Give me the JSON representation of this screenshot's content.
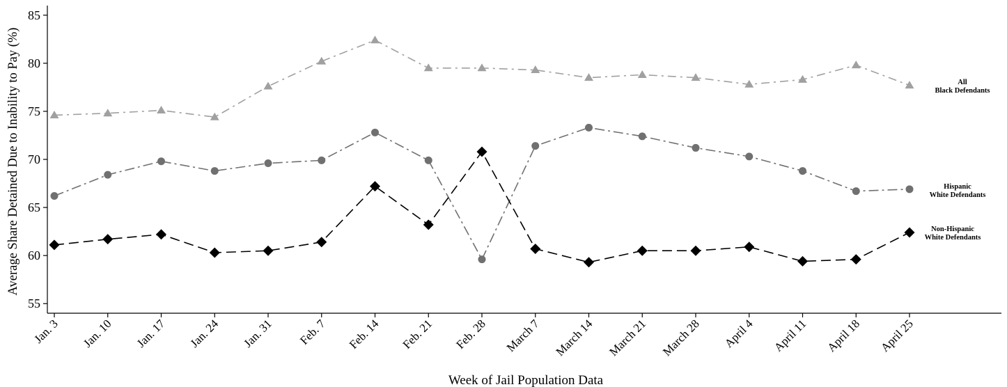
{
  "chart_data": {
    "type": "line",
    "title": "",
    "xlabel": "Week of Jail Population Data",
    "ylabel": "Average Share Detained Due to Inability to Pay (%)",
    "ylim": [
      54,
      86
    ],
    "yticks": [
      55,
      60,
      65,
      70,
      75,
      80,
      85
    ],
    "grid": false,
    "categories": [
      "Jan. 3",
      "Jan. 10",
      "Jan. 17",
      "Jan. 24",
      "Jan. 31",
      "Feb. 7",
      "Feb. 14",
      "Feb. 21",
      "Feb. 28",
      "March 7",
      "March 14",
      "March 21",
      "March 28",
      "April 4",
      "April 11",
      "April 18",
      "April 25"
    ],
    "series": [
      {
        "label_lines": [
          "All",
          "Black Defendants"
        ],
        "color": "#a0a0a0",
        "marker": "triangle",
        "dash": "long-dash-dot",
        "values": [
          74.6,
          74.8,
          75.1,
          74.4,
          77.6,
          80.2,
          82.4,
          79.5,
          79.5,
          79.3,
          78.5,
          78.8,
          78.5,
          77.8,
          78.3,
          79.8,
          77.7
        ]
      },
      {
        "label_lines": [
          "Hispanic",
          "White Defendants"
        ],
        "color": "#707070",
        "marker": "circle",
        "dash": "dash-dot",
        "values": [
          66.2,
          68.4,
          69.8,
          68.8,
          69.6,
          69.9,
          72.8,
          69.9,
          59.6,
          71.4,
          73.3,
          72.4,
          71.2,
          70.3,
          68.8,
          66.7,
          66.9
        ]
      },
      {
        "label_lines": [
          "Non-Hispanic",
          "White Defendants"
        ],
        "color": "#000000",
        "marker": "diamond",
        "dash": "long-dash",
        "values": [
          61.1,
          61.7,
          62.2,
          60.3,
          60.5,
          61.4,
          67.2,
          63.2,
          70.8,
          60.7,
          59.3,
          60.5,
          60.5,
          60.9,
          59.4,
          59.6,
          62.4
        ]
      }
    ]
  }
}
